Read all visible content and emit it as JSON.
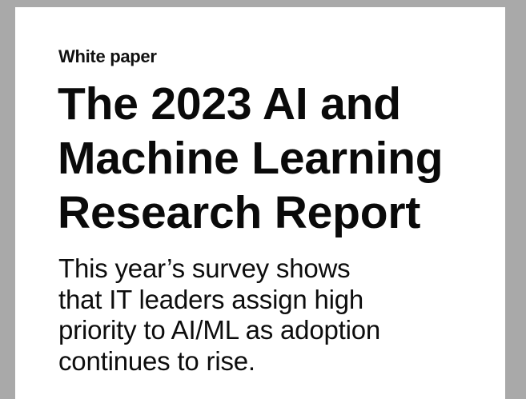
{
  "document": {
    "eyebrow": "White paper",
    "title_lines": [
      "The 2023 AI and",
      "Machine Learning",
      "Research Report"
    ],
    "subtitle_lines": [
      "This year’s survey shows",
      "that IT leaders assign high",
      "priority to AI/ML as adoption",
      "continues to rise."
    ]
  },
  "colors": {
    "viewer_background": "#a9a9a9",
    "page_background": "#ffffff",
    "text": "#0a0a0a"
  }
}
